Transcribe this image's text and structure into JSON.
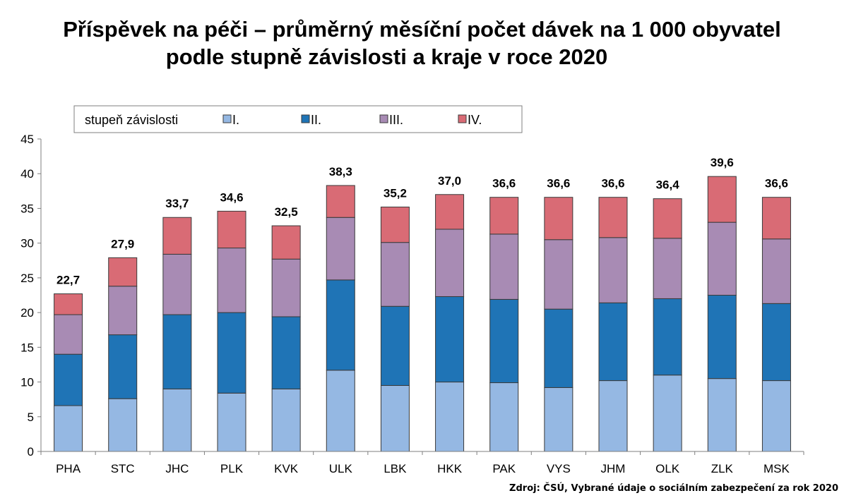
{
  "chart_data": {
    "type": "bar",
    "stacked": true,
    "title_lines": [
      "Příspěvek na péči – průměrný měsíční počet dávek na 1 000 obyvatel",
      "podle stupně závislosti a kraje v roce 2020"
    ],
    "legend_title": "stupeň závislosti",
    "legend_placement": "top-left",
    "categories": [
      "PHA",
      "STC",
      "JHC",
      "PLK",
      "KVK",
      "ULK",
      "LBK",
      "HKK",
      "PAK",
      "VYS",
      "JHM",
      "OLK",
      "ZLK",
      "MSK"
    ],
    "series": [
      {
        "name": "I.",
        "color": "#95b8e3",
        "values": [
          6.6,
          7.6,
          9.0,
          8.4,
          9.0,
          11.7,
          9.5,
          10.0,
          9.9,
          9.2,
          10.2,
          11.0,
          10.5,
          10.2
        ]
      },
      {
        "name": "II.",
        "color": "#1f74b6",
        "values": [
          7.4,
          9.2,
          10.7,
          11.6,
          10.4,
          13.0,
          11.4,
          12.3,
          12.0,
          11.3,
          11.2,
          11.0,
          12.0,
          11.1
        ]
      },
      {
        "name": "III.",
        "color": "#a88bb4",
        "values": [
          5.7,
          7.0,
          8.7,
          9.3,
          8.3,
          9.0,
          9.2,
          9.7,
          9.4,
          10.0,
          9.4,
          8.7,
          10.5,
          9.3
        ]
      },
      {
        "name": "IV.",
        "color": "#d96b75",
        "values": [
          3.0,
          4.1,
          5.3,
          5.3,
          4.8,
          4.6,
          5.1,
          5.0,
          5.3,
          6.1,
          5.8,
          5.7,
          6.6,
          6.0
        ]
      }
    ],
    "totals": [
      "22,7",
      "27,9",
      "33,7",
      "34,6",
      "32,5",
      "38,3",
      "35,2",
      "37,0",
      "36,6",
      "36,6",
      "36,6",
      "36,4",
      "39,6",
      "36,6"
    ],
    "ylim": [
      0,
      45
    ],
    "yticks": [
      0,
      5,
      10,
      15,
      20,
      25,
      30,
      35,
      40,
      45
    ],
    "xlabel": "",
    "ylabel": "",
    "grid": false
  },
  "source": "Zdroj: ČSÚ, Vybrané údaje o sociálním zabezpečení za rok 2020"
}
